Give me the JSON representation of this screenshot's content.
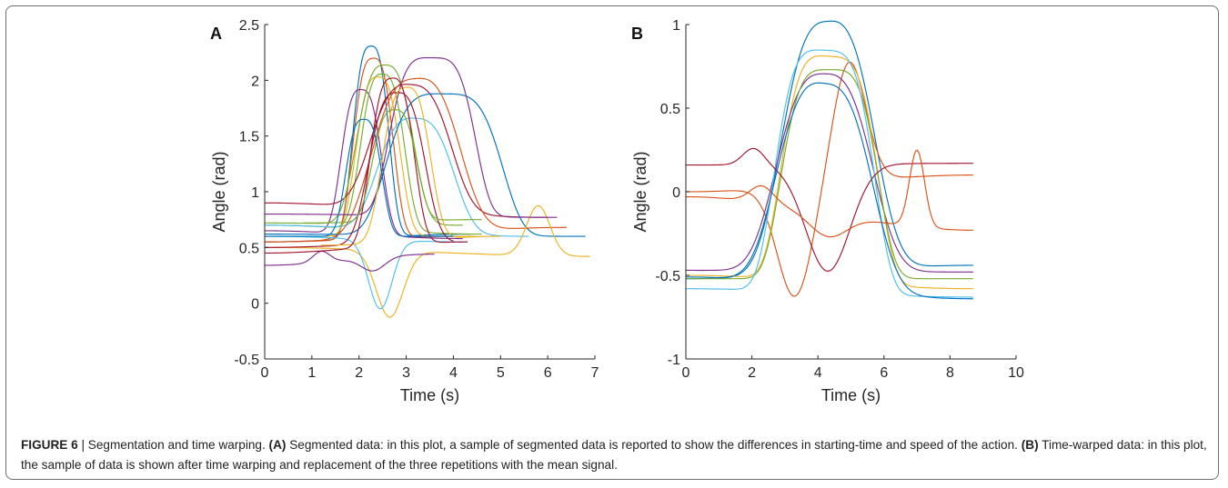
{
  "caption": {
    "figure_label": "FIGURE 6",
    "separator": " | ",
    "title": "Segmentation and time warping.",
    "a_tag": "(A)",
    "a_text": "Segmented data: in this plot, a sample of segmented data is reported to show the differences in starting-time and speed of the action.",
    "b_tag": "(B)",
    "b_text": "Time-warped data: in this plot, the sample of data is shown after time warping and replacement of the three repetitions with the mean signal."
  },
  "colors": {
    "blue": "#0072bd",
    "orange": "#d95319",
    "yellow": "#edb120",
    "purple": "#7e2f8e",
    "green": "#77ac30",
    "cyan": "#4dbeee",
    "maroon": "#a2142f",
    "axis": "#262626",
    "caption_text": "#222222"
  },
  "chart_data": [
    {
      "type": "line",
      "panel": "A",
      "xlabel": "Time (s)",
      "ylabel": "Angle (rad)",
      "xlim": [
        0,
        7
      ],
      "ylim": [
        -0.5,
        2.5
      ],
      "xticks": [
        "0",
        "1",
        "2",
        "3",
        "4",
        "5",
        "6",
        "7"
      ],
      "yticks": [
        "-0.5",
        "0",
        "0.5",
        "1",
        "1.5",
        "2",
        "2.5"
      ],
      "grid": false,
      "series": [
        {
          "color": "blue",
          "start": 0.55,
          "end": 0.62,
          "t0": 0,
          "t1": 4.4,
          "bumps": [
            {
              "c": 2.25,
              "a": 1.72,
              "w": 0.45,
              "p": 3
            }
          ]
        },
        {
          "color": "orange",
          "start": 0.55,
          "end": 0.6,
          "t0": 0,
          "t1": 4.3,
          "bumps": [
            {
              "c": 2.3,
              "a": 1.62,
              "w": 0.5,
              "p": 3
            }
          ]
        },
        {
          "color": "yellow",
          "start": 0.6,
          "end": 0.6,
          "t0": 0,
          "t1": 4.5,
          "bumps": [
            {
              "c": 2.4,
              "a": 1.43,
              "w": 0.55,
              "p": 3
            }
          ]
        },
        {
          "color": "purple",
          "start": 0.65,
          "end": 0.58,
          "t0": 0,
          "t1": 4.2,
          "bumps": [
            {
              "c": 2.05,
              "a": 1.3,
              "w": 0.5,
              "p": 3
            }
          ]
        },
        {
          "color": "green",
          "start": 0.7,
          "end": 0.62,
          "t0": 0,
          "t1": 4.6,
          "bumps": [
            {
              "c": 2.5,
              "a": 1.4,
              "w": 0.55,
              "p": 3
            }
          ]
        },
        {
          "color": "cyan",
          "start": 0.7,
          "end": 0.6,
          "t0": 0,
          "t1": 5.6,
          "bumps": [
            {
              "c": 3.2,
              "a": 1.02,
              "w": 0.95,
              "p": 3
            }
          ]
        },
        {
          "color": "maroon",
          "start": 0.9,
          "end": 0.77,
          "t0": 0,
          "t1": 6.0,
          "bumps": [
            {
              "c": 3.1,
              "a": 1.13,
              "w": 1.0,
              "p": 3
            }
          ]
        },
        {
          "color": "blue",
          "start": 0.62,
          "end": 0.6,
          "t0": 0,
          "t1": 6.8,
          "bumps": [
            {
              "c": 3.8,
              "a": 1.27,
              "w": 1.35,
              "p": 4
            }
          ]
        },
        {
          "color": "orange",
          "start": 0.55,
          "end": 0.68,
          "t0": 0,
          "t1": 6.4,
          "bumps": [
            {
              "c": 3.2,
              "a": 1.4,
              "w": 1.1,
              "p": 3
            }
          ]
        },
        {
          "color": "yellow",
          "start": 0.5,
          "end": 0.42,
          "t0": 0,
          "t1": 6.9,
          "bumps": [
            {
              "c": 2.65,
              "a": -0.6,
              "w": 0.4,
              "p": 2
            },
            {
              "c": 5.8,
              "a": 0.45,
              "w": 0.35,
              "p": 2
            }
          ]
        },
        {
          "color": "purple",
          "start": 0.8,
          "end": 0.77,
          "t0": 0,
          "t1": 6.2,
          "bumps": [
            {
              "c": 3.55,
              "a": 1.42,
              "w": 1.0,
              "p": 4
            }
          ]
        },
        {
          "color": "green",
          "start": 0.72,
          "end": 0.7,
          "t0": 0,
          "t1": 4.2,
          "bumps": [
            {
              "c": 2.55,
              "a": 1.43,
              "w": 0.7,
              "p": 3
            }
          ]
        },
        {
          "color": "cyan",
          "start": 0.6,
          "end": 0.55,
          "t0": 0,
          "t1": 4.3,
          "bumps": [
            {
              "c": 2.45,
              "a": -0.62,
              "w": 0.35,
              "p": 2
            }
          ]
        },
        {
          "color": "maroon",
          "start": 0.5,
          "end": 0.55,
          "t0": 0,
          "t1": 4.0,
          "bumps": [
            {
              "c": 2.8,
              "a": 1.35,
              "w": 0.7,
              "p": 3
            }
          ]
        },
        {
          "color": "purple",
          "start": 0.34,
          "end": 0.44,
          "t0": 0,
          "t1": 3.6,
          "bumps": [
            {
              "c": 1.2,
              "a": 0.1,
              "w": 0.25,
              "p": 2
            },
            {
              "c": 2.3,
              "a": -0.12,
              "w": 0.35,
              "p": 2
            }
          ]
        },
        {
          "color": "yellow",
          "start": 0.52,
          "end": 0.6,
          "t0": 1.2,
          "t1": 5.0,
          "bumps": [
            {
              "c": 3.0,
              "a": 1.38,
              "w": 0.6,
              "p": 3
            }
          ]
        },
        {
          "color": "maroon",
          "start": 0.45,
          "end": 0.55,
          "t0": 0,
          "t1": 4.3,
          "bumps": [
            {
              "c": 2.7,
              "a": 1.5,
              "w": 0.55,
              "p": 3
            }
          ]
        },
        {
          "color": "green",
          "start": 0.72,
          "end": 0.75,
          "t0": 0.8,
          "t1": 4.6,
          "bumps": [
            {
              "c": 2.75,
              "a": 1.0,
              "w": 0.55,
              "p": 3
            }
          ]
        },
        {
          "color": "blue",
          "start": 0.6,
          "end": 0.6,
          "t0": 0,
          "t1": 4.0,
          "bumps": [
            {
              "c": 2.1,
              "a": 1.05,
              "w": 0.45,
              "p": 3
            }
          ]
        }
      ]
    },
    {
      "type": "line",
      "panel": "B",
      "xlabel": "Time (s)",
      "ylabel": "Angle (rad)",
      "xlim": [
        0,
        10
      ],
      "ylim": [
        -1,
        1
      ],
      "xticks": [
        "0",
        "2",
        "4",
        "6",
        "8",
        "10"
      ],
      "yticks": [
        "-1",
        "-0.5",
        "0",
        "0.5",
        "1"
      ],
      "grid": false,
      "series": [
        {
          "color": "blue",
          "start": -0.52,
          "end": -0.44,
          "t0": 0,
          "t1": 8.7,
          "bumps": [
            {
              "c": 4.3,
              "a": 1.5,
              "w": 1.65,
              "p": 3
            }
          ]
        },
        {
          "color": "orange",
          "start": 0.0,
          "end": 0.1,
          "t0": 0,
          "t1": 8.7,
          "bumps": [
            {
              "c": 3.3,
              "a": -0.66,
              "w": 0.75,
              "p": 2
            },
            {
              "c": 4.95,
              "a": 0.72,
              "w": 0.7,
              "p": 2
            }
          ]
        },
        {
          "color": "yellow",
          "start": -0.5,
          "end": -0.58,
          "t0": 0,
          "t1": 8.7,
          "bumps": [
            {
              "c": 4.35,
              "a": 1.35,
              "w": 1.6,
              "p": 4
            }
          ]
        },
        {
          "color": "purple",
          "start": -0.47,
          "end": -0.48,
          "t0": 0,
          "t1": 8.7,
          "bumps": [
            {
              "c": 4.2,
              "a": 1.18,
              "w": 1.7,
              "p": 3
            }
          ]
        },
        {
          "color": "green",
          "start": -0.52,
          "end": -0.52,
          "t0": 0,
          "t1": 8.7,
          "bumps": [
            {
              "c": 4.35,
              "a": 1.25,
              "w": 1.6,
              "p": 4
            }
          ]
        },
        {
          "color": "cyan",
          "start": -0.58,
          "end": -0.63,
          "t0": 0,
          "t1": 8.7,
          "bumps": [
            {
              "c": 4.2,
              "a": 1.45,
              "w": 1.65,
              "p": 4
            }
          ]
        },
        {
          "color": "maroon",
          "start": 0.16,
          "end": 0.17,
          "t0": 0,
          "t1": 8.7,
          "bumps": [
            {
              "c": 2.05,
              "a": 0.1,
              "w": 0.45,
              "p": 2
            },
            {
              "c": 4.3,
              "a": -0.64,
              "w": 0.95,
              "p": 2
            }
          ]
        },
        {
          "color": "orange",
          "start": -0.03,
          "end": -0.23,
          "t0": 0,
          "t1": 8.7,
          "bumps": [
            {
              "c": 2.3,
              "a": 0.1,
              "w": 0.5,
              "p": 2
            },
            {
              "c": 4.3,
              "a": -0.14,
              "w": 0.8,
              "p": 2
            },
            {
              "c": 7.0,
              "a": 0.46,
              "w": 0.32,
              "p": 2
            }
          ]
        },
        {
          "color": "blue",
          "start": -0.51,
          "end": -0.64,
          "t0": 0,
          "t1": 8.7,
          "bumps": [
            {
              "c": 4.2,
              "a": 1.22,
              "w": 1.7,
              "p": 3
            }
          ]
        }
      ]
    }
  ]
}
